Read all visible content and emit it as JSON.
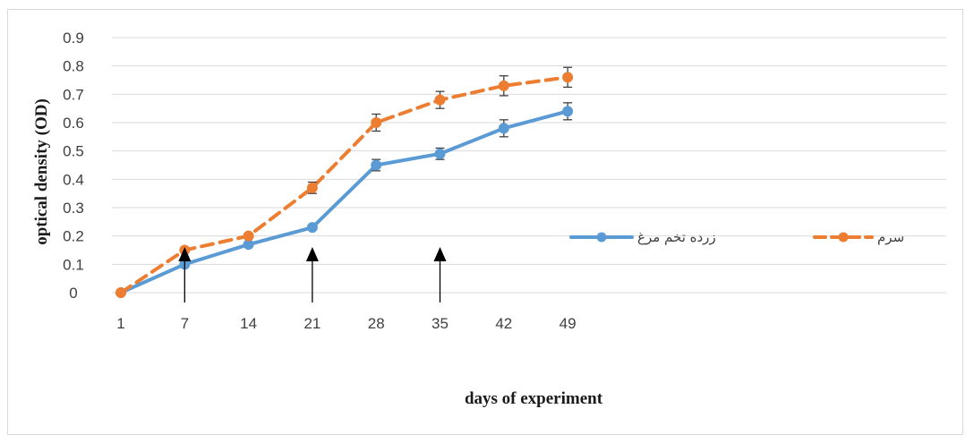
{
  "chart_data": {
    "type": "line",
    "x": [
      1,
      7,
      14,
      21,
      28,
      35,
      42,
      49
    ],
    "xlabel": "days of experiment",
    "ylabel": "optical density (OD)",
    "ylim": [
      0,
      0.9
    ],
    "yticks": [
      "0",
      "0.1",
      "0.2",
      "0.3",
      "0.4",
      "0.5",
      "0.6",
      "0.7",
      "0.8",
      "0.9"
    ],
    "xticks": [
      "1",
      "7",
      "14",
      "21",
      "28",
      "35",
      "42",
      "49"
    ],
    "grid": "horizontal",
    "legend_position": "right",
    "series": [
      {
        "name": "زرده تخم مرغ",
        "color": "#5b9bd5",
        "dash": "solid",
        "values": [
          0,
          0.1,
          0.17,
          0.23,
          0.45,
          0.49,
          0.58,
          0.64
        ],
        "errors": [
          0,
          0,
          0,
          0,
          0.02,
          0.02,
          0.03,
          0.03
        ]
      },
      {
        "name": "سرم",
        "color": "#ed7d31",
        "dash": "dashed",
        "values": [
          0,
          0.15,
          0.2,
          0.37,
          0.6,
          0.68,
          0.73,
          0.76
        ],
        "errors": [
          0,
          0,
          0,
          0.02,
          0.03,
          0.03,
          0.035,
          0.035
        ]
      }
    ],
    "annotations": {
      "arrows_at_x": [
        7,
        21,
        35
      ]
    }
  }
}
